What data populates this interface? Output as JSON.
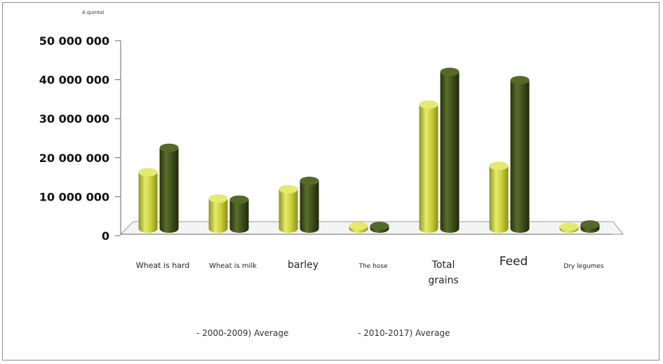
{
  "chart_data": {
    "type": "bar",
    "unit_label": "A quintal",
    "categories": [
      "Wheat is hard",
      "Wheat is milk",
      "barley",
      "The hose",
      "Total grains",
      "Feed",
      "Dry legumes"
    ],
    "series": [
      {
        "name": "- 2000-2009) Average",
        "color": "#c9cf3a",
        "values": [
          15000000,
          8000000,
          10500000,
          700000,
          33000000,
          16700000,
          500000
        ]
      },
      {
        "name": "- 2010-2017) Average",
        "color": "#3f4f1c",
        "values": [
          21500000,
          7700000,
          12700000,
          700000,
          41700000,
          39500000,
          1100000
        ]
      }
    ],
    "y_ticks": [
      "0",
      "10 000 000",
      "20 000 000",
      "30 000 000",
      "40 000 000",
      "50 000 000"
    ],
    "ylim": [
      0,
      50000000
    ],
    "grid": false,
    "legend": "bottom"
  }
}
